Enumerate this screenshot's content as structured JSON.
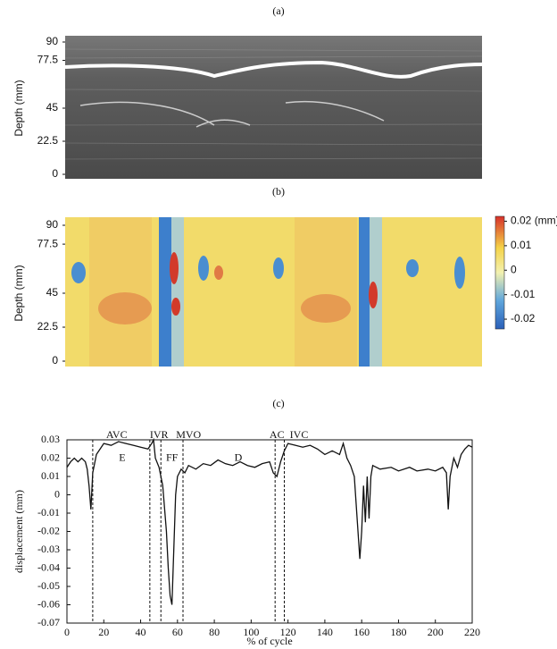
{
  "chart_data": [
    {
      "type": "image",
      "title": "(a)",
      "ylabel": "Depth (mm)",
      "ylim": [
        0,
        90
      ],
      "yticks": [
        0,
        22.5,
        45,
        77.5,
        90
      ]
    },
    {
      "type": "heatmap",
      "title": "(b)",
      "ylabel": "Depth (mm)",
      "ylim": [
        0,
        90
      ],
      "yticks": [
        0,
        22.5,
        45,
        77.5,
        90
      ],
      "clim": [
        -0.024,
        0.022
      ],
      "cticks": [
        {
          "value": 0.02,
          "label": "0.02 (mm)"
        },
        0.01,
        0,
        -0.01,
        -0.02
      ]
    },
    {
      "type": "line",
      "title": "(c)",
      "xlabel": "% of cycle",
      "ylabel": "displacement (mm)",
      "xlim": [
        0,
        220
      ],
      "xticks": [
        0,
        20,
        40,
        60,
        80,
        100,
        120,
        140,
        160,
        180,
        200,
        220
      ],
      "ylim": [
        -0.07,
        0.03
      ],
      "yticks": [
        -0.07,
        -0.06,
        -0.05,
        -0.04,
        -0.03,
        -0.02,
        -0.01,
        0,
        0.01,
        0.02,
        0.03
      ],
      "x": [
        0,
        2,
        4,
        6,
        8,
        10,
        11,
        12,
        13,
        14,
        16,
        18,
        20,
        24,
        28,
        32,
        36,
        40,
        44,
        46,
        47,
        48,
        50,
        52,
        54,
        55,
        56,
        57,
        58,
        59,
        60,
        62,
        64,
        66,
        70,
        74,
        78,
        82,
        86,
        90,
        94,
        98,
        102,
        106,
        110,
        112,
        114,
        116,
        118,
        120,
        124,
        128,
        132,
        136,
        140,
        144,
        148,
        150,
        152,
        154,
        156,
        158,
        159,
        160,
        161,
        162,
        163,
        164,
        165,
        166,
        170,
        176,
        180,
        186,
        190,
        196,
        200,
        204,
        206,
        207,
        208,
        210,
        212,
        214,
        216,
        218,
        220
      ],
      "series": [
        {
          "color": "#111111",
          "values": [
            0.015,
            0.018,
            0.02,
            0.018,
            0.02,
            0.018,
            0.014,
            0.005,
            -0.008,
            0.012,
            0.022,
            0.025,
            0.028,
            0.027,
            0.029,
            0.028,
            0.027,
            0.026,
            0.025,
            0.028,
            0.03,
            0.02,
            0.015,
            0.005,
            -0.02,
            -0.04,
            -0.055,
            -0.06,
            -0.03,
            0.0,
            0.01,
            0.014,
            0.012,
            0.016,
            0.014,
            0.017,
            0.016,
            0.019,
            0.017,
            0.016,
            0.018,
            0.016,
            0.015,
            0.017,
            0.018,
            0.012,
            0.01,
            0.018,
            0.024,
            0.028,
            0.027,
            0.026,
            0.027,
            0.025,
            0.022,
            0.024,
            0.022,
            0.028,
            0.02,
            0.016,
            0.01,
            -0.02,
            -0.035,
            -0.02,
            0.005,
            -0.015,
            0.01,
            -0.013,
            0.01,
            0.016,
            0.014,
            0.015,
            0.013,
            0.015,
            0.013,
            0.014,
            0.013,
            0.015,
            0.012,
            -0.008,
            0.01,
            0.02,
            0.015,
            0.022,
            0.025,
            0.027,
            0.026
          ]
        }
      ],
      "vlines": [
        14,
        45,
        51,
        63,
        113,
        118
      ],
      "annotations": [
        {
          "text": "AVC",
          "x": 27,
          "y": 0.0295
        },
        {
          "text": "IVR",
          "x": 50,
          "y": 0.0295
        },
        {
          "text": "MVO",
          "x": 66,
          "y": 0.0295
        },
        {
          "text": "E",
          "x": 30,
          "y": 0.017
        },
        {
          "text": "FF",
          "x": 57,
          "y": 0.017
        },
        {
          "text": "D",
          "x": 93,
          "y": 0.017
        },
        {
          "text": "AC",
          "x": 114,
          "y": 0.0295
        },
        {
          "text": "IVC",
          "x": 126,
          "y": 0.0295
        }
      ]
    }
  ]
}
